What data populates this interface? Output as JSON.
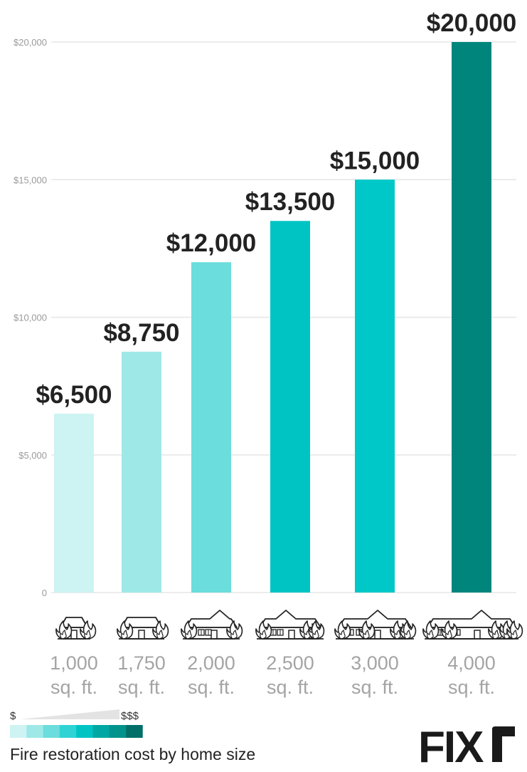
{
  "chart_data": {
    "type": "bar",
    "title": "Fire restoration cost by home size",
    "categories": [
      [
        "1,000",
        "sq. ft."
      ],
      [
        "1,750",
        "sq. ft."
      ],
      [
        "2,000",
        "sq. ft."
      ],
      [
        "2,500",
        "sq. ft."
      ],
      [
        "3,000",
        "sq. ft."
      ],
      [
        "4,000",
        "sq. ft."
      ]
    ],
    "values": [
      6500,
      8750,
      12000,
      13500,
      15000,
      20000
    ],
    "value_labels": [
      "$6,500",
      "$8,750",
      "$12,000",
      "$13,500",
      "$15,000",
      "$20,000"
    ],
    "bar_colors": [
      "#cdf3f2",
      "#9ee9e8",
      "#6bdddc",
      "#00c4c4",
      "#00c8c8",
      "#00857d"
    ],
    "ylim": [
      0,
      20000
    ],
    "yticks": [
      0,
      5000,
      10000,
      15000,
      20000
    ],
    "ytick_labels": [
      "0",
      "$5,000",
      "$10,000",
      "$15,000",
      "$20,000"
    ],
    "grid": true,
    "icon_names": [
      "small-house-fire-icon",
      "house-fire-icon",
      "medium-house-fire-icon",
      "large-house-fire-icon",
      "wide-house-fire-icon",
      "extra-wide-house-fire-icon"
    ]
  },
  "legend": {
    "low_label": "$",
    "high_label": "$$$",
    "swatches": [
      "#cdf3f2",
      "#9ee9e8",
      "#6bdddc",
      "#2fd3d3",
      "#00c4c4",
      "#00a8a3",
      "#00928b",
      "#006f68"
    ]
  },
  "logo": {
    "text": "FIXr",
    "accent": "#7ac143"
  }
}
